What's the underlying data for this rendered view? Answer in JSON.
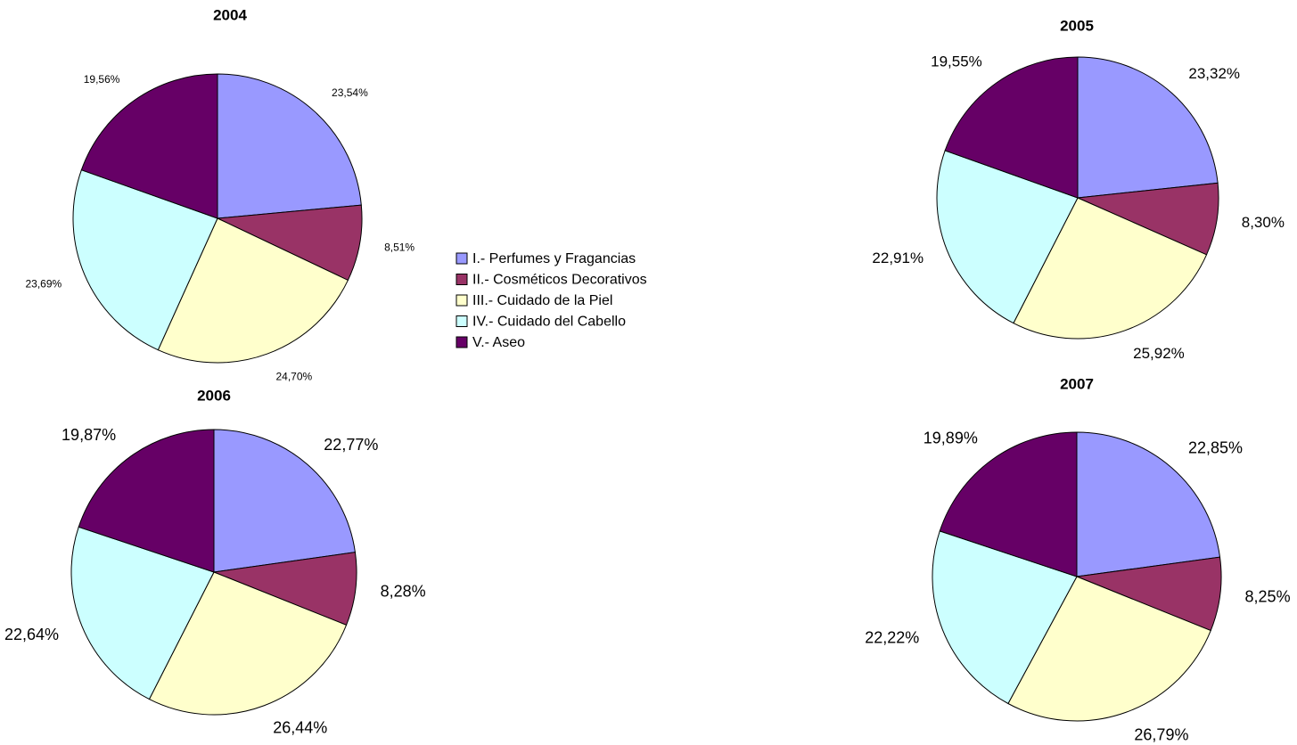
{
  "legend": {
    "labels": [
      "I.- Perfumes y Fragancias",
      "II.- Cosméticos Decorativos",
      "III.- Cuidado de la Piel",
      "IV.- Cuidado del Cabello",
      "V.- Aseo"
    ],
    "colors": [
      "#9999ff",
      "#993366",
      "#ffffcc",
      "#ccffff",
      "#660066"
    ]
  },
  "chart_data": [
    {
      "type": "pie",
      "title": "2004",
      "values": [
        23.54,
        8.51,
        24.7,
        23.69,
        19.56
      ],
      "value_labels": [
        "23,54%",
        "8,51%",
        "24,70%",
        "23,69%",
        "19,56%"
      ]
    },
    {
      "type": "pie",
      "title": "2005",
      "values": [
        23.32,
        8.3,
        25.92,
        22.91,
        19.55
      ],
      "value_labels": [
        "23,32%",
        "8,30%",
        "25,92%",
        "22,91%",
        "19,55%"
      ]
    },
    {
      "type": "pie",
      "title": "2006",
      "values": [
        22.77,
        8.28,
        26.44,
        22.64,
        19.87
      ],
      "value_labels": [
        "22,77%",
        "8,28%",
        "26,44%",
        "22,64%",
        "19,87%"
      ]
    },
    {
      "type": "pie",
      "title": "2007",
      "values": [
        22.85,
        8.25,
        26.79,
        22.22,
        19.89
      ],
      "value_labels": [
        "22,85%",
        "8,25%",
        "26,79%",
        "22,22%",
        "19,89%"
      ]
    }
  ]
}
